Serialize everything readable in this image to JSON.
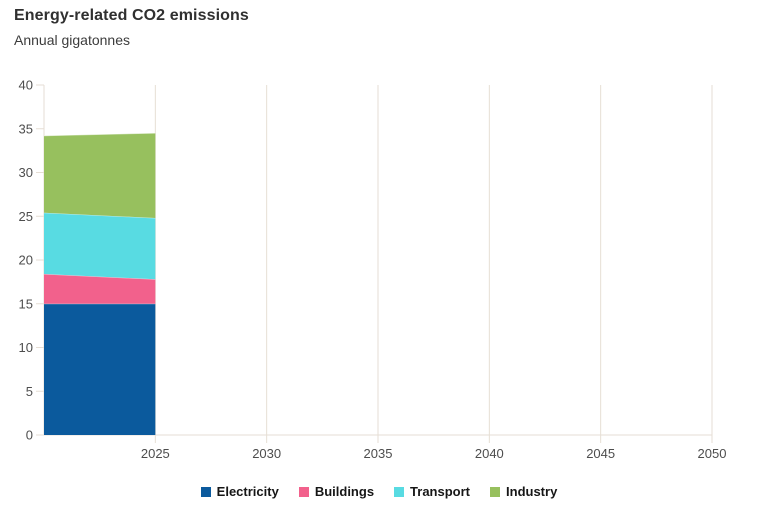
{
  "header": {
    "title": "Energy-related CO2 emissions",
    "subtitle": "Annual gigatonnes"
  },
  "chart_data": {
    "type": "area",
    "stacked": true,
    "title": "Energy-related CO2 emissions",
    "subtitle": "Annual gigatonnes",
    "x": [
      2020,
      2025
    ],
    "series": [
      {
        "name": "Electricity",
        "color": "#0b5a9d",
        "values": [
          15.0,
          15.0
        ]
      },
      {
        "name": "Buildings",
        "color": "#f2618c",
        "values": [
          3.4,
          2.8
        ]
      },
      {
        "name": "Transport",
        "color": "#58dbe2",
        "values": [
          7.0,
          7.0
        ]
      },
      {
        "name": "Industry",
        "color": "#97c05e",
        "values": [
          8.8,
          9.7
        ]
      }
    ],
    "cumulative_tops": {
      "2020": [
        15.0,
        18.4,
        25.4,
        34.2
      ],
      "2025": [
        15.0,
        17.8,
        24.8,
        34.5
      ]
    },
    "xlabel": "",
    "ylabel": "",
    "xlim": [
      2020,
      2050
    ],
    "ylim": [
      0,
      40
    ],
    "x_ticks": [
      2025,
      2030,
      2035,
      2040,
      2045,
      2050
    ],
    "y_ticks": [
      0,
      5,
      10,
      15,
      20,
      25,
      30,
      35,
      40
    ],
    "grid": "vertical-only",
    "legend_position": "bottom-center",
    "axis_color": "#e6ded4",
    "tick_label_color": "#4d4d4d"
  },
  "legend": {
    "items": [
      {
        "label": "Electricity"
      },
      {
        "label": "Buildings"
      },
      {
        "label": "Transport"
      },
      {
        "label": "Industry"
      }
    ]
  }
}
